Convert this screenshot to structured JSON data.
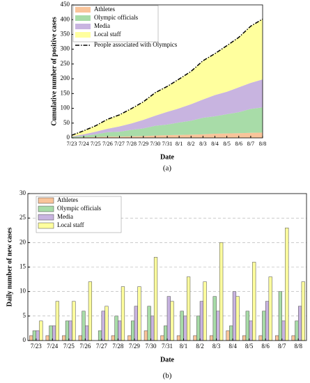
{
  "chart_data": [
    {
      "type": "area",
      "stacked": true,
      "caption": "(a)",
      "xlabel": "Date",
      "ylabel": "Cumulative number of positive cases",
      "categories": [
        "7/23",
        "7/24",
        "7/25",
        "7/26",
        "7/27",
        "7/28",
        "7/29",
        "7/30",
        "7/31",
        "8/1",
        "8/2",
        "8/3",
        "8/4",
        "8/5",
        "8/6",
        "8/7",
        "8/8"
      ],
      "ylim": [
        0,
        450
      ],
      "yticks": [
        0,
        50,
        100,
        150,
        200,
        250,
        300,
        350,
        400,
        450
      ],
      "grid": false,
      "legend": "upper left",
      "series": [
        {
          "name": "Athletes",
          "color": "#f9c49a",
          "values": [
            1,
            2,
            3,
            4,
            4,
            5,
            6,
            8,
            9,
            10,
            11,
            12,
            14,
            15,
            16,
            17,
            18
          ]
        },
        {
          "name": "Olympic officials",
          "color": "#a8dca8",
          "values": [
            2,
            5,
            9,
            15,
            17,
            22,
            26,
            33,
            36,
            42,
            47,
            56,
            59,
            65,
            71,
            81,
            85
          ]
        },
        {
          "name": "Media",
          "color": "#c8b4e0",
          "values": [
            2,
            5,
            9,
            12,
            18,
            22,
            29,
            34,
            43,
            48,
            56,
            62,
            72,
            76,
            84,
            88,
            95
          ]
        },
        {
          "name": "Local staff",
          "color": "#ffff9e",
          "values": [
            4,
            12,
            20,
            32,
            39,
            50,
            61,
            78,
            86,
            99,
            111,
            131,
            140,
            156,
            169,
            192,
            204
          ]
        },
        {
          "name": "People associated with Olympics",
          "type": "line",
          "color": "#000000",
          "values": [
            9,
            24,
            41,
            63,
            78,
            99,
            122,
            153,
            174,
            199,
            225,
            261,
            285,
            312,
            340,
            378,
            402
          ]
        }
      ]
    },
    {
      "type": "bar",
      "caption": "(b)",
      "xlabel": "Date",
      "ylabel": "Daily  number of new cases",
      "categories": [
        "7/23",
        "7/24",
        "7/25",
        "7/26",
        "7/27",
        "7/28",
        "7/29",
        "7/30",
        "7/31",
        "8/1",
        "8/2",
        "8/3",
        "8/4",
        "8/5",
        "8/6",
        "8/7",
        "8/8"
      ],
      "ylim": [
        0,
        30
      ],
      "yticks": [
        0,
        5,
        10,
        15,
        20,
        25,
        30
      ],
      "grid": true,
      "legend": "upper left",
      "series": [
        {
          "name": "Athletes",
          "color": "#f9c49a",
          "values": [
            1,
            1,
            1,
            1,
            0,
            1,
            1,
            2,
            1,
            1,
            1,
            1,
            2,
            1,
            1,
            1,
            1
          ]
        },
        {
          "name": "Olympic officials",
          "color": "#a8dca8",
          "values": [
            2,
            3,
            4,
            6,
            2,
            5,
            4,
            7,
            3,
            6,
            5,
            9,
            3,
            6,
            6,
            10,
            4
          ]
        },
        {
          "name": "Media",
          "color": "#c8b4e0",
          "values": [
            2,
            3,
            4,
            3,
            6,
            4,
            7,
            5,
            9,
            5,
            8,
            6,
            10,
            4,
            8,
            4,
            7
          ]
        },
        {
          "name": "Local staff",
          "color": "#ffff9e",
          "values": [
            4,
            8,
            8,
            12,
            7,
            11,
            11,
            17,
            8,
            13,
            12,
            20,
            9,
            16,
            13,
            23,
            12
          ]
        }
      ]
    }
  ]
}
